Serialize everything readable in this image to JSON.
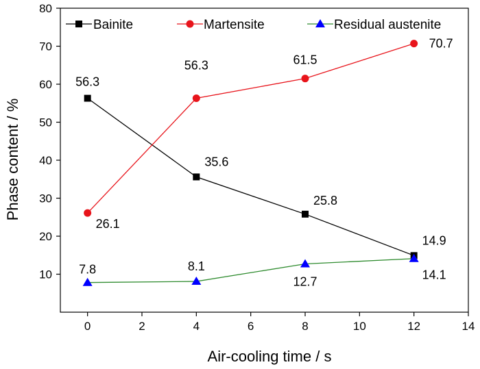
{
  "chart_data": {
    "type": "line",
    "title": "",
    "xlabel": "Air-cooling time / s",
    "ylabel": "Phase content / %",
    "xlim": [
      -1,
      14
    ],
    "ylim": [
      0,
      80
    ],
    "xticks": [
      0,
      2,
      4,
      6,
      8,
      10,
      12,
      14
    ],
    "yticks": [
      10,
      20,
      30,
      40,
      50,
      60,
      70,
      80
    ],
    "grid": false,
    "legend_position": "top",
    "x": [
      0,
      4,
      8,
      12
    ],
    "series": [
      {
        "name": "Bainite",
        "values": [
          56.3,
          35.6,
          25.8,
          14.9
        ],
        "color": "#000000",
        "marker": "square",
        "labels": [
          "56.3",
          "35.6",
          "25.8",
          "14.9"
        ]
      },
      {
        "name": "Martensite",
        "values": [
          26.1,
          56.3,
          61.5,
          70.7
        ],
        "color": "#e8141b",
        "marker": "circle",
        "labels": [
          "26.1",
          "56.3",
          "61.5",
          "70.7"
        ]
      },
      {
        "name": "Residual austenite",
        "values": [
          7.8,
          8.1,
          12.7,
          14.1
        ],
        "color": "#0000ff",
        "line_color": "#2e8b2e",
        "marker": "triangle",
        "labels": [
          "7.8",
          "8.1",
          "12.7",
          "14.1"
        ]
      }
    ]
  }
}
